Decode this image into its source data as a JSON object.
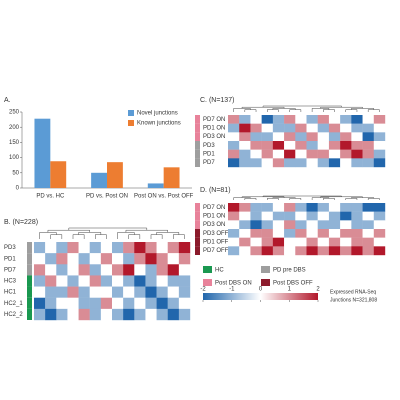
{
  "chart_data": [
    {
      "type": "bar",
      "title": "A.",
      "categories": [
        "PD vs. HC",
        "PD vs. Post ON",
        "Post ON vs. Post OFF"
      ],
      "series": [
        {
          "name": "Novel junctions",
          "color": "#5b9bd5",
          "values": [
            228,
            50,
            15
          ]
        },
        {
          "name": "Known junctions",
          "color": "#ed7d31",
          "values": [
            88,
            85,
            68
          ]
        }
      ],
      "ylim": [
        0,
        250
      ],
      "yticks": [
        0,
        50,
        100,
        150,
        200,
        250
      ]
    },
    {
      "type": "heatmap",
      "title": "B. (N=228)",
      "rows": [
        "PD3",
        "PD1",
        "PD7",
        "HC3",
        "HC1",
        "HC2_1",
        "HC2_2"
      ],
      "row_groups": [
        1,
        1,
        1,
        0,
        0,
        0,
        0
      ],
      "values": [
        [
          -1,
          0,
          -1,
          1,
          0,
          -1,
          0,
          -1,
          1,
          2,
          1,
          0,
          1,
          2
        ],
        [
          0,
          -1,
          1,
          0,
          -1,
          0,
          1,
          0,
          -1,
          1,
          2,
          1,
          0,
          1
        ],
        [
          1,
          0,
          -1,
          0,
          1,
          -1,
          0,
          1,
          2,
          0,
          -1,
          1,
          2,
          0
        ],
        [
          -1,
          1,
          0,
          -1,
          0,
          1,
          -1,
          0,
          -1,
          -2,
          -1,
          0,
          -1,
          -1
        ],
        [
          0,
          -1,
          -1,
          1,
          -1,
          0,
          0,
          -1,
          0,
          -1,
          -2,
          -1,
          0,
          -1
        ],
        [
          -2,
          -1,
          0,
          0,
          -1,
          -1,
          1,
          0,
          -1,
          0,
          -1,
          -2,
          -1,
          0
        ],
        [
          -1,
          -2,
          -1,
          0,
          1,
          -1,
          0,
          -1,
          -2,
          -1,
          0,
          -1,
          -2,
          -1
        ]
      ]
    },
    {
      "type": "heatmap",
      "title": "C. (N=137)",
      "rows": [
        "PD7 ON",
        "PD1 ON",
        "PD3 ON",
        "PD3",
        "PD1",
        "PD7"
      ],
      "row_groups": [
        2,
        2,
        2,
        1,
        1,
        1
      ],
      "values": [
        [
          1,
          -1,
          0,
          -2,
          -1,
          1,
          0,
          -1,
          1,
          0,
          -1,
          -2,
          0,
          1
        ],
        [
          -1,
          2,
          1,
          0,
          -1,
          -1,
          1,
          0,
          -1,
          1,
          0,
          -1,
          -1,
          0
        ],
        [
          0,
          1,
          -1,
          -1,
          0,
          1,
          -1,
          1,
          0,
          -1,
          1,
          0,
          -2,
          -1
        ],
        [
          -1,
          0,
          1,
          1,
          2,
          0,
          1,
          -1,
          0,
          1,
          2,
          1,
          1,
          0
        ],
        [
          1,
          -1,
          0,
          1,
          0,
          2,
          0,
          1,
          1,
          0,
          1,
          2,
          1,
          -1
        ],
        [
          -2,
          -1,
          -1,
          0,
          1,
          -1,
          -1,
          0,
          -1,
          -2,
          0,
          -1,
          -1,
          -2
        ]
      ]
    },
    {
      "type": "heatmap",
      "title": "D. (N=81)",
      "rows": [
        "PD7 ON",
        "PD1 ON",
        "PD3 ON",
        "PD3 OFF",
        "PD1 OFF",
        "PD7 OFF"
      ],
      "row_groups": [
        2,
        2,
        2,
        3,
        3,
        3
      ],
      "values": [
        [
          2,
          1,
          -1,
          -1,
          0,
          1,
          -1,
          -2,
          -1,
          0,
          -1,
          -1,
          -2,
          -2
        ],
        [
          1,
          0,
          -1,
          0,
          -1,
          -1,
          0,
          -1,
          0,
          -1,
          -2,
          -1,
          0,
          -1
        ],
        [
          0,
          -1,
          -2,
          -1,
          0,
          1,
          -1,
          0,
          -1,
          -1,
          0,
          -1,
          -1,
          0
        ],
        [
          -1,
          0,
          1,
          1,
          0,
          -1,
          1,
          0,
          1,
          0,
          1,
          1,
          0,
          1
        ],
        [
          0,
          1,
          0,
          1,
          2,
          0,
          0,
          1,
          0,
          1,
          0,
          1,
          1,
          0
        ],
        [
          -1,
          0,
          1,
          2,
          1,
          0,
          1,
          2,
          1,
          2,
          1,
          2,
          1,
          2
        ]
      ]
    }
  ],
  "groups": [
    {
      "name": "HC",
      "color": "#1a9850"
    },
    {
      "name": "PD pre DBS",
      "color": "#9e9e9e"
    },
    {
      "name": "Post DBS ON",
      "color": "#e8829a"
    },
    {
      "name": "Post DBS OFF",
      "color": "#8b1a2b"
    }
  ],
  "colorbar": {
    "ticks": [
      -2,
      -1,
      0,
      1,
      2
    ],
    "colors": [
      "#2166ac",
      "#ffffff",
      "#b2182b"
    ]
  },
  "note": [
    "Expressed RNA-Seq",
    "Junctions N=321,808"
  ]
}
